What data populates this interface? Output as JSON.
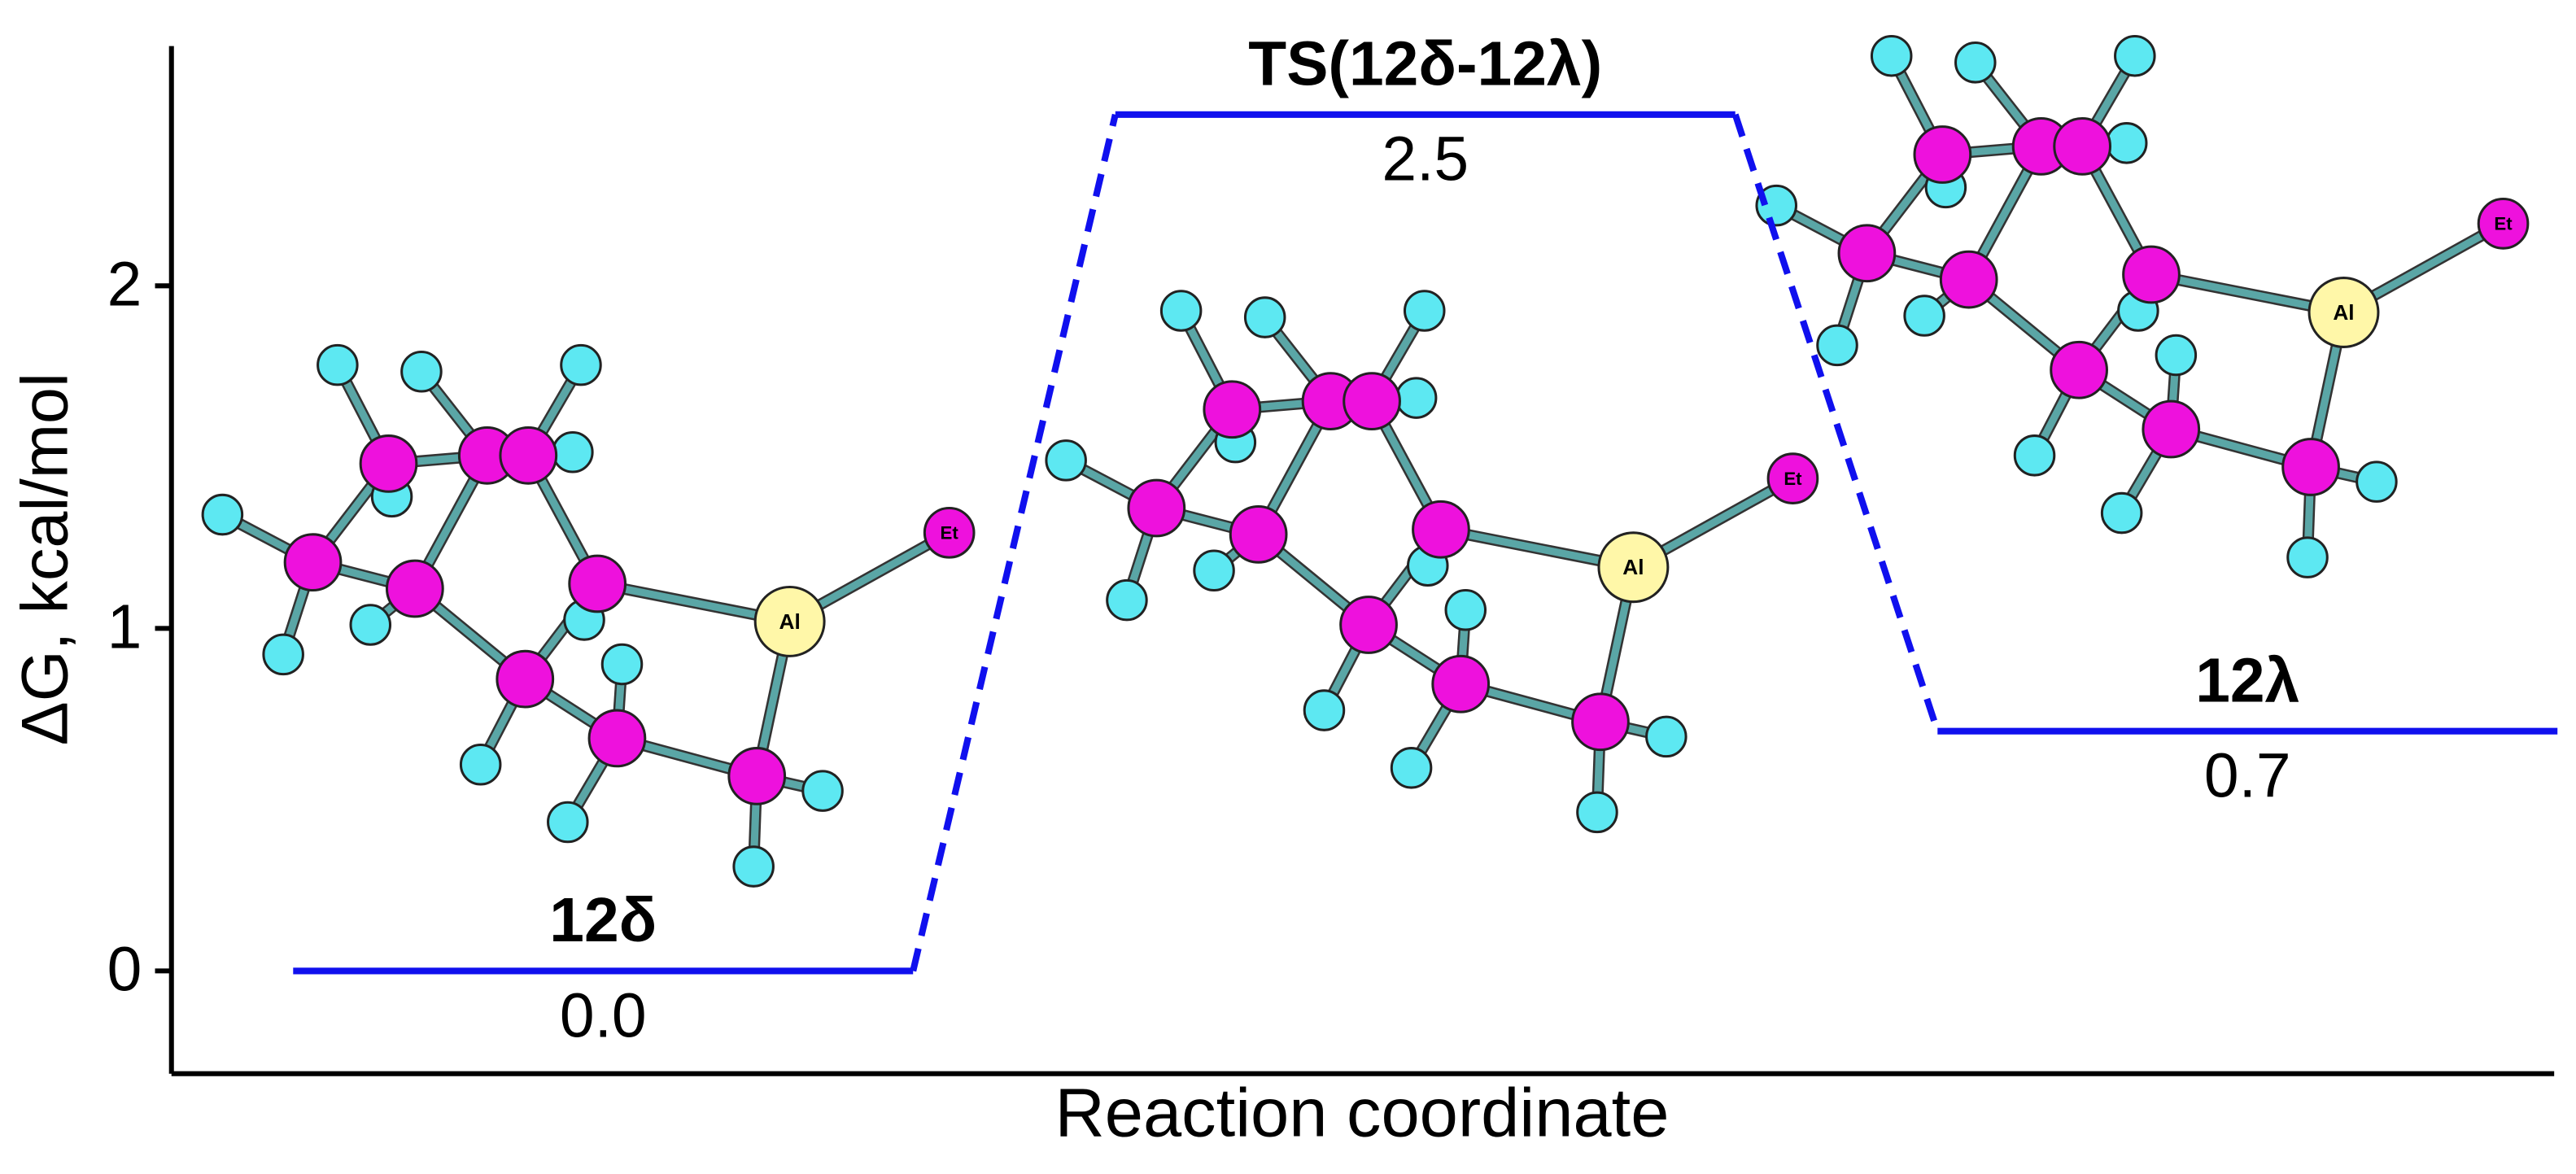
{
  "chart_data": {
    "type": "energy-profile",
    "y_label": "ΔG, kcal/mol",
    "x_label": "Reaction coordinate",
    "categories": [
      "12δ",
      "TS(12δ-12λ)",
      "12λ"
    ],
    "values": [
      0,
      2.5,
      0.7
    ],
    "value_labels": [
      "0.0",
      "2.5",
      "0.7"
    ],
    "color": "#1010ee",
    "ylim": [
      -0.3,
      2.7
    ],
    "yticks": [
      0,
      1,
      2
    ]
  },
  "molecule_labels": [
    [
      "Al",
      "Et"
    ],
    [
      "Al",
      "Et"
    ],
    [
      "Al",
      "Et"
    ]
  ]
}
